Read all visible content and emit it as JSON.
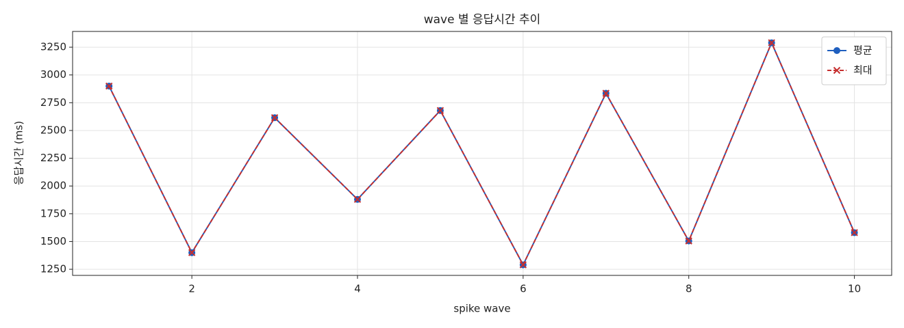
{
  "chart_data": {
    "type": "line",
    "title": "wave 별 응답시간 추이",
    "x_label": "spike wave",
    "y_label": "응답시간 (ms)",
    "x": [
      1,
      2,
      3,
      4,
      5,
      6,
      7,
      8,
      9,
      10
    ],
    "series": [
      {
        "name": "평균",
        "color": "#1f5fbf",
        "marker": "circle",
        "linestyle": "solid",
        "values": [
          2900,
          1400,
          2615,
          1880,
          2680,
          1290,
          2835,
          1505,
          3290,
          1580
        ]
      },
      {
        "name": "최대",
        "color": "#c62f2f",
        "marker": "x",
        "linestyle": "dashed",
        "values": [
          2900,
          1400,
          2615,
          1880,
          2680,
          1290,
          2835,
          1505,
          3290,
          1580
        ]
      }
    ],
    "xlim": [
      0.56,
      10.45
    ],
    "ylim": [
      1195,
      3392
    ],
    "xticks": [
      2,
      4,
      6,
      8,
      10
    ],
    "yticks": [
      1250,
      1500,
      1750,
      2000,
      2250,
      2500,
      2750,
      3000,
      3250
    ],
    "grid": true,
    "legend": "upper right"
  }
}
